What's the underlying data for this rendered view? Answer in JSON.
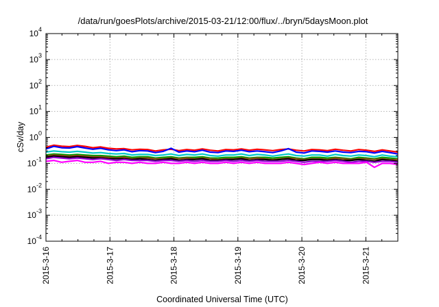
{
  "chart_data": {
    "type": "line",
    "title": "/data/run/goesPlots/archive/2015-03-21/12:00/flux/../bryn/5daysMoon.plot",
    "xlabel": "Coordinated Universal Time (UTC)",
    "ylabel": "cSv/day",
    "yscale": "log",
    "ylim": [
      0.0001,
      10000
    ],
    "xlim_days": [
      0,
      5.5
    ],
    "grid": true,
    "y_ticks": [
      {
        "base": "10",
        "exp": "4"
      },
      {
        "base": "10",
        "exp": "3"
      },
      {
        "base": "10",
        "exp": "2"
      },
      {
        "base": "10",
        "exp": "1"
      },
      {
        "base": "10",
        "exp": "0"
      },
      {
        "base": "10",
        "exp": "-1"
      },
      {
        "base": "10",
        "exp": "-2"
      },
      {
        "base": "10",
        "exp": "-3"
      },
      {
        "base": "10",
        "exp": "-4"
      }
    ],
    "x_ticks": [
      "2015-3-16",
      "2015-3-17",
      "2015-3-18",
      "2015-3-19",
      "2015-3-20",
      "2015-3-21"
    ],
    "series": [
      {
        "color": "#ff0000",
        "values": [
          0.42,
          0.5,
          0.46,
          0.44,
          0.49,
          0.45,
          0.4,
          0.43,
          0.38,
          0.36,
          0.37,
          0.33,
          0.35,
          0.34,
          0.3,
          0.33,
          0.35,
          0.31,
          0.34,
          0.32,
          0.36,
          0.32,
          0.3,
          0.34,
          0.33,
          0.36,
          0.32,
          0.35,
          0.33,
          0.31,
          0.34,
          0.36,
          0.32,
          0.3,
          0.34,
          0.33,
          0.31,
          0.35,
          0.32,
          0.3,
          0.34,
          0.32,
          0.29,
          0.33,
          0.3,
          0.27
        ]
      },
      {
        "color": "#0000ff",
        "values": [
          0.36,
          0.45,
          0.4,
          0.39,
          0.44,
          0.39,
          0.35,
          0.38,
          0.33,
          0.31,
          0.33,
          0.28,
          0.31,
          0.3,
          0.26,
          0.29,
          0.38,
          0.27,
          0.3,
          0.28,
          0.32,
          0.27,
          0.26,
          0.3,
          0.29,
          0.32,
          0.28,
          0.3,
          0.28,
          0.26,
          0.3,
          0.37,
          0.27,
          0.25,
          0.3,
          0.29,
          0.27,
          0.3,
          0.27,
          0.26,
          0.29,
          0.28,
          0.25,
          0.29,
          0.26,
          0.23
        ]
      },
      {
        "color": "#00c8c8",
        "values": [
          0.27,
          0.3,
          0.28,
          0.27,
          0.29,
          0.27,
          0.25,
          0.26,
          0.24,
          0.23,
          0.24,
          0.21,
          0.22,
          0.22,
          0.2,
          0.21,
          0.23,
          0.2,
          0.22,
          0.21,
          0.23,
          0.2,
          0.19,
          0.21,
          0.21,
          0.23,
          0.2,
          0.22,
          0.21,
          0.19,
          0.21,
          0.23,
          0.2,
          0.19,
          0.21,
          0.21,
          0.19,
          0.22,
          0.2,
          0.19,
          0.21,
          0.2,
          0.18,
          0.21,
          0.19,
          0.18
        ]
      },
      {
        "color": "#00a000",
        "values": [
          0.21,
          0.23,
          0.22,
          0.21,
          0.22,
          0.21,
          0.2,
          0.2,
          0.19,
          0.18,
          0.19,
          0.17,
          0.18,
          0.18,
          0.16,
          0.17,
          0.18,
          0.16,
          0.17,
          0.17,
          0.18,
          0.16,
          0.16,
          0.17,
          0.17,
          0.18,
          0.16,
          0.17,
          0.17,
          0.16,
          0.17,
          0.18,
          0.16,
          0.15,
          0.17,
          0.17,
          0.16,
          0.17,
          0.16,
          0.15,
          0.17,
          0.16,
          0.15,
          0.17,
          0.16,
          0.15
        ]
      },
      {
        "color": "#8b4513",
        "values": [
          0.19,
          0.21,
          0.2,
          0.19,
          0.2,
          0.19,
          0.18,
          0.18,
          0.17,
          0.16,
          0.17,
          0.15,
          0.16,
          0.16,
          0.15,
          0.15,
          0.16,
          0.15,
          0.16,
          0.15,
          0.16,
          0.15,
          0.14,
          0.15,
          0.15,
          0.16,
          0.15,
          0.16,
          0.15,
          0.14,
          0.15,
          0.16,
          0.15,
          0.14,
          0.15,
          0.15,
          0.14,
          0.16,
          0.15,
          0.14,
          0.15,
          0.15,
          0.14,
          0.15,
          0.14,
          0.14
        ]
      },
      {
        "color": "#000000",
        "values": [
          0.17,
          0.19,
          0.18,
          0.17,
          0.18,
          0.17,
          0.16,
          0.16,
          0.15,
          0.15,
          0.15,
          0.14,
          0.15,
          0.14,
          0.13,
          0.14,
          0.15,
          0.13,
          0.14,
          0.14,
          0.15,
          0.13,
          0.13,
          0.14,
          0.14,
          0.15,
          0.13,
          0.14,
          0.14,
          0.13,
          0.14,
          0.15,
          0.13,
          0.13,
          0.14,
          0.14,
          0.13,
          0.14,
          0.13,
          0.13,
          0.14,
          0.13,
          0.12,
          0.14,
          0.13,
          0.12
        ]
      },
      {
        "color": "#9400d3",
        "values": [
          0.15,
          0.17,
          0.16,
          0.15,
          0.16,
          0.15,
          0.14,
          0.15,
          0.14,
          0.13,
          0.14,
          0.13,
          0.13,
          0.13,
          0.12,
          0.13,
          0.13,
          0.12,
          0.13,
          0.12,
          0.13,
          0.12,
          0.12,
          0.13,
          0.12,
          0.13,
          0.12,
          0.13,
          0.12,
          0.12,
          0.12,
          0.13,
          0.12,
          0.11,
          0.12,
          0.12,
          0.12,
          0.13,
          0.12,
          0.11,
          0.12,
          0.12,
          0.11,
          0.12,
          0.12,
          0.11
        ]
      },
      {
        "color": "#ff00ff",
        "values": [
          0.12,
          0.13,
          0.11,
          0.12,
          0.13,
          0.11,
          0.11,
          0.12,
          0.1,
          0.11,
          0.11,
          0.1,
          0.11,
          0.1,
          0.1,
          0.11,
          0.1,
          0.1,
          0.11,
          0.1,
          0.11,
          0.1,
          0.1,
          0.11,
          0.1,
          0.11,
          0.1,
          0.11,
          0.1,
          0.1,
          0.1,
          0.11,
          0.1,
          0.09,
          0.1,
          0.11,
          0.1,
          0.11,
          0.1,
          0.1,
          0.1,
          0.11,
          0.07,
          0.1,
          0.1,
          0.09
        ]
      }
    ]
  }
}
